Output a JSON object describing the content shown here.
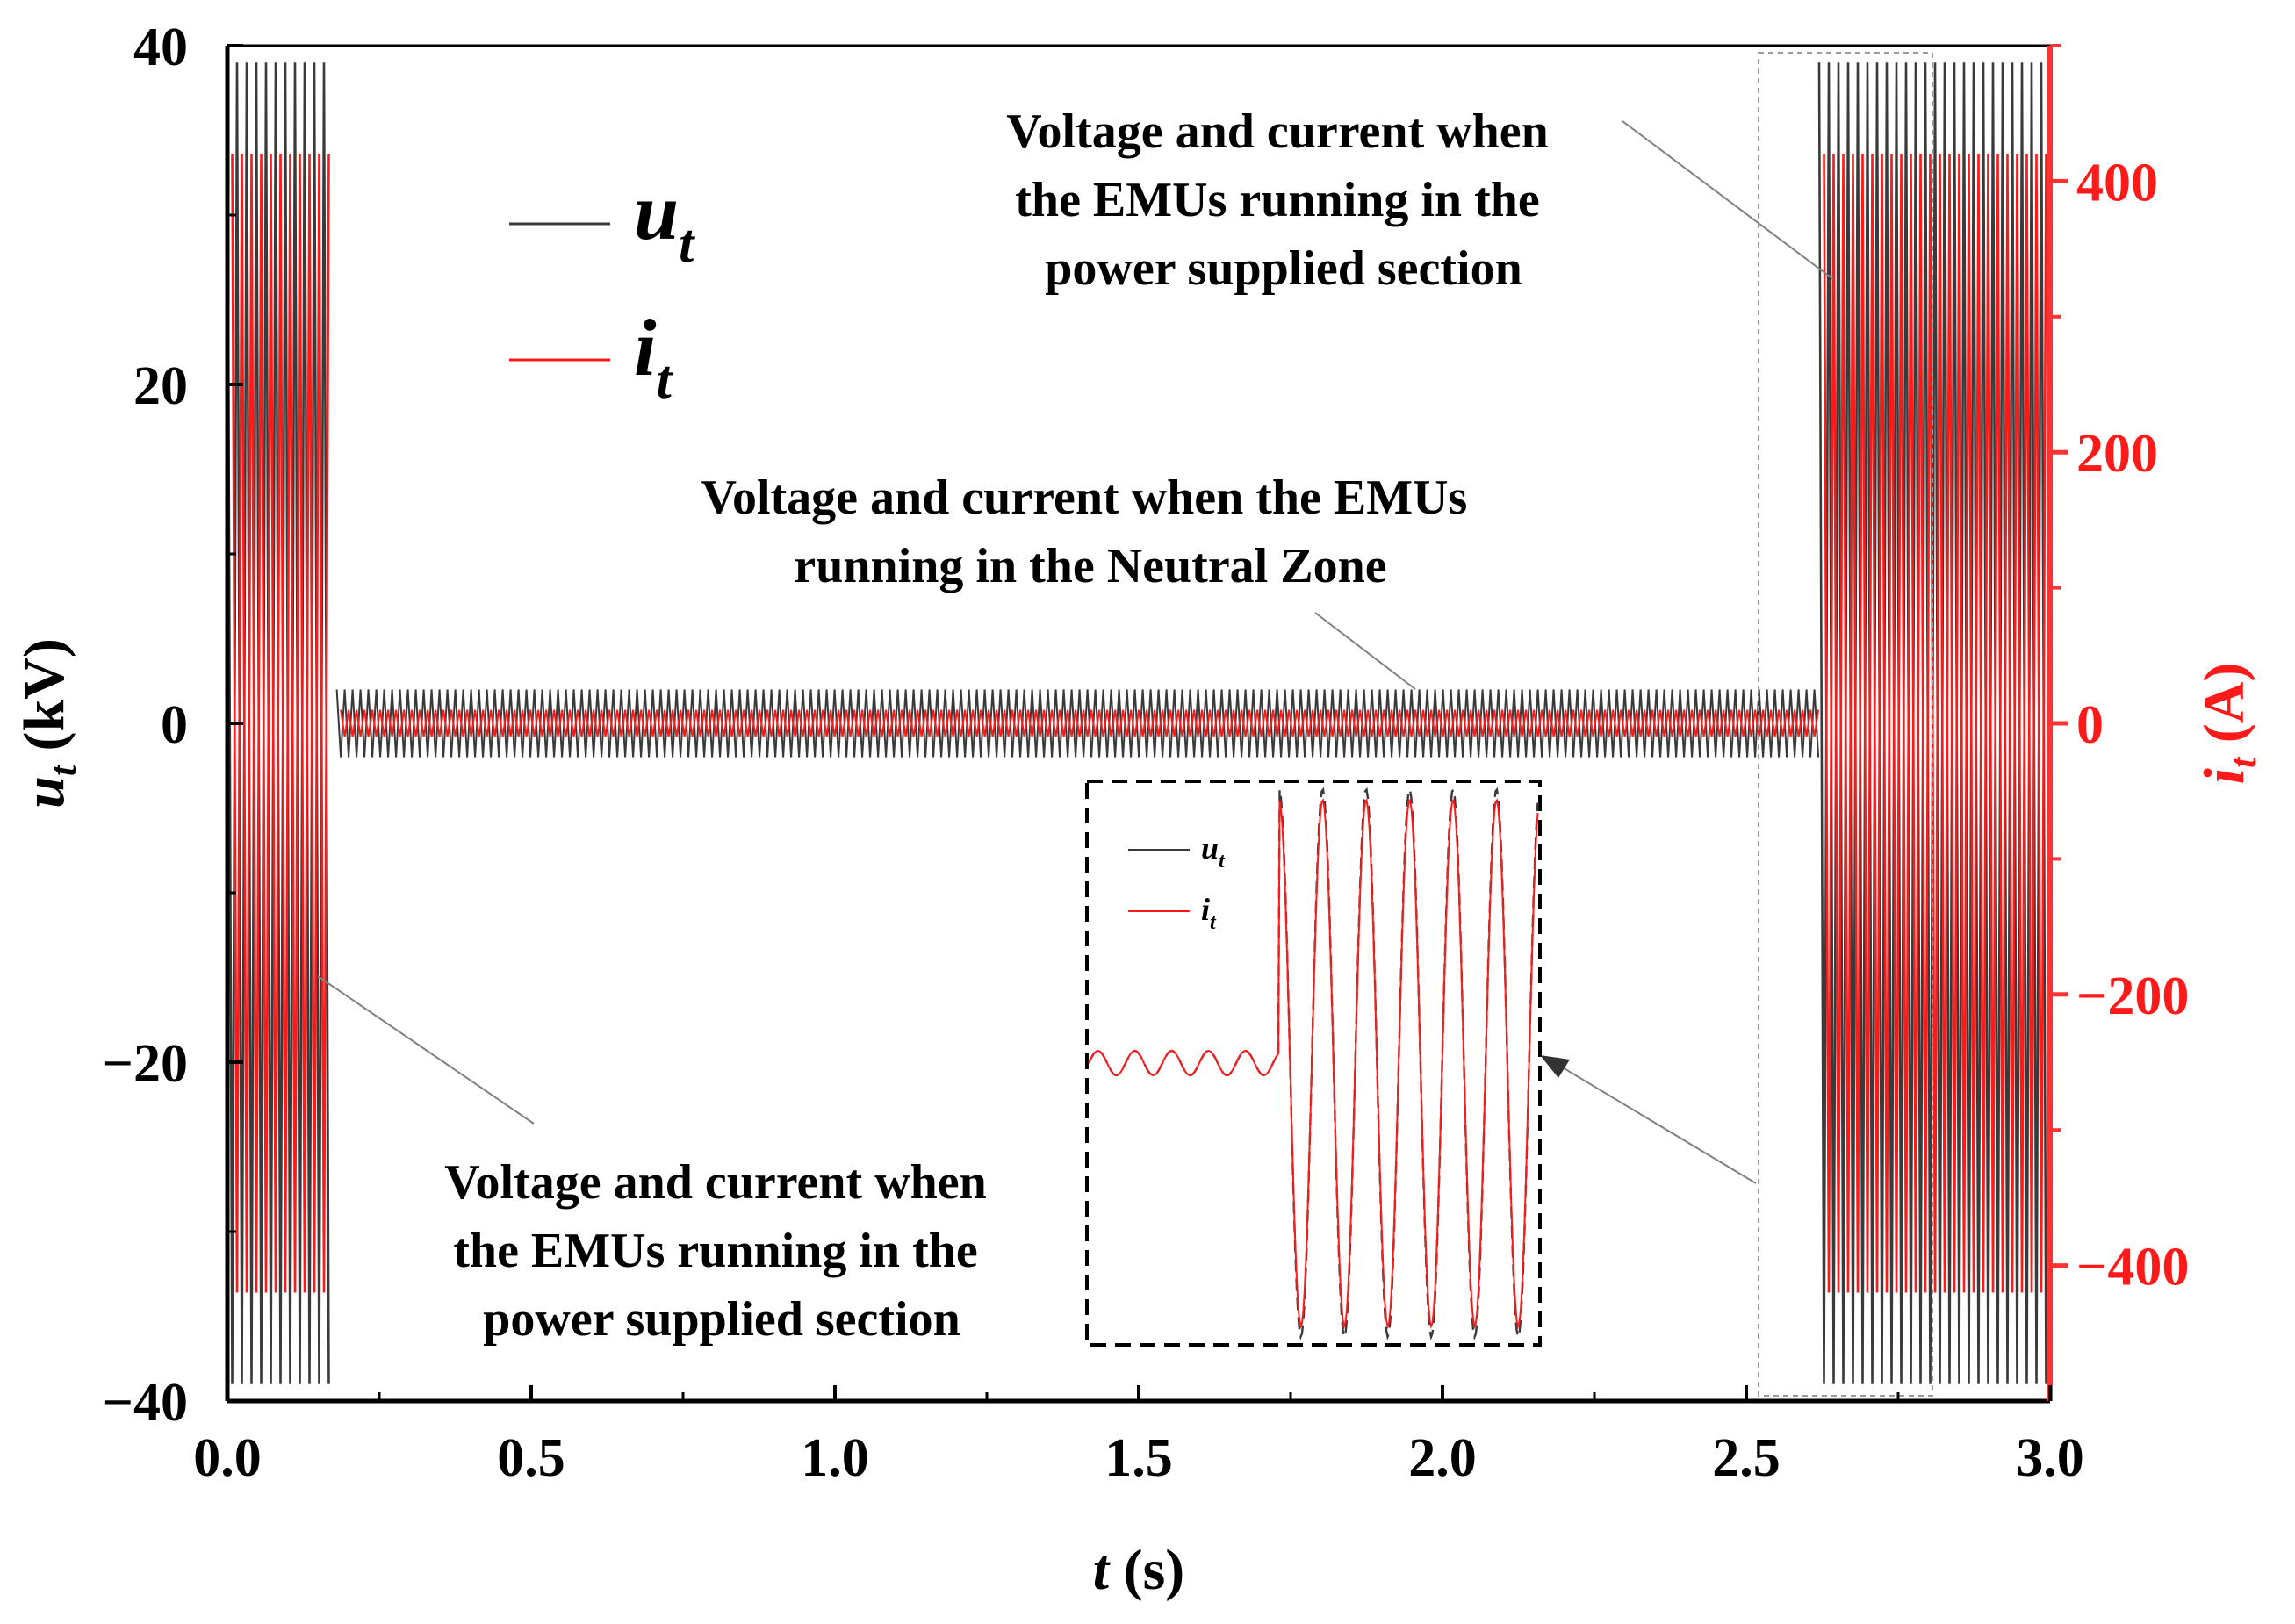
{
  "chart_data": {
    "type": "line",
    "title": "",
    "xlabel": {
      "main": "t",
      "unit": " (s)"
    },
    "ylabel_left": {
      "main": "u",
      "sub": "t",
      "unit": " (kV)"
    },
    "ylabel_right": {
      "main": "i",
      "sub": "t",
      "unit": " (A)"
    },
    "x_range": [
      0,
      3
    ],
    "y_left_range": [
      -40,
      40
    ],
    "y_right_range": [
      -500,
      500
    ],
    "x_ticks": [
      {
        "value": 0.0,
        "label": "0.0"
      },
      {
        "value": 0.5,
        "label": "0.5"
      },
      {
        "value": 1.0,
        "label": "1.0"
      },
      {
        "value": 1.5,
        "label": "1.5"
      },
      {
        "value": 2.0,
        "label": "2.0"
      },
      {
        "value": 2.5,
        "label": "2.5"
      },
      {
        "value": 3.0,
        "label": "3.0"
      }
    ],
    "y_left_ticks": [
      {
        "value": 40,
        "label": "40"
      },
      {
        "value": 20,
        "label": "20"
      },
      {
        "value": 0,
        "label": "0"
      },
      {
        "value": -20,
        "label": "−20"
      },
      {
        "value": -40,
        "label": "−40"
      }
    ],
    "y_right_ticks": [
      {
        "value": 400,
        "label": "400"
      },
      {
        "value": 200,
        "label": "200"
      },
      {
        "value": 0,
        "label": "0"
      },
      {
        "value": -200,
        "label": "−200"
      },
      {
        "value": -400,
        "label": "−400"
      }
    ],
    "series": [
      {
        "name": "u_t",
        "label_main": "u",
        "label_sub": "t",
        "axis": "left",
        "color": "#3a3a3a",
        "segments": [
          {
            "t_start": 0.0,
            "t_end": 0.17,
            "amplitude": 39
          },
          {
            "t_start": 0.18,
            "t_end": 2.62,
            "amplitude": 2
          },
          {
            "t_start": 2.62,
            "t_end": 3.0,
            "amplitude": 39
          }
        ]
      },
      {
        "name": "i_t",
        "label_main": "i",
        "label_sub": "t",
        "axis": "right",
        "color": "#ff1a1a",
        "segments": [
          {
            "t_start": 0.0,
            "t_end": 0.17,
            "amplitude": 420
          },
          {
            "t_start": 0.18,
            "t_end": 2.62,
            "amplitude": 10
          },
          {
            "t_start": 2.62,
            "t_end": 3.0,
            "amplitude": 420
          }
        ]
      }
    ],
    "annotations": [
      {
        "id": "right-section",
        "lines": [
          "Voltage and current when",
          "the EMUs running in the",
          "power supplied section"
        ]
      },
      {
        "id": "neutral-zone",
        "lines": [
          "Voltage and current when the EMUs",
          "running in the Neutral Zone"
        ]
      },
      {
        "id": "left-section",
        "lines": [
          "Voltage and current when",
          "the EMUs running in the",
          "power supplied section"
        ]
      }
    ],
    "inset": {
      "legend": [
        {
          "main": "u",
          "sub": "t",
          "color": "#3a3a3a"
        },
        {
          "main": "i",
          "sub": "t",
          "color": "#ff1a1a"
        }
      ]
    },
    "grid": false,
    "legend_position": "top-left"
  },
  "colors": {
    "voltage": "#3a3a3a",
    "current": "#ff1a1a",
    "left_axis": "#000000",
    "right_axis": "#ff3333"
  }
}
